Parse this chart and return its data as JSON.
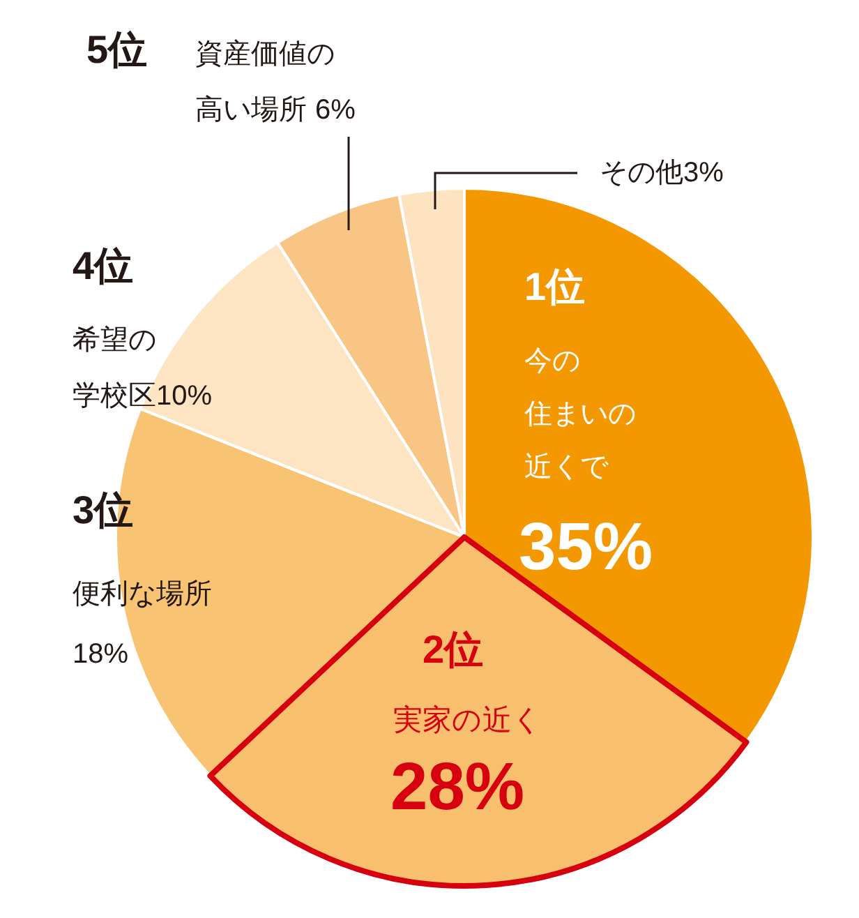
{
  "chart_data": {
    "type": "pie",
    "categories": [
      "今の住まいの近くで",
      "実家の近く",
      "便利な場所",
      "希望の学校区",
      "資産価値の高い場所",
      "その他"
    ],
    "values": [
      35,
      28,
      18,
      10,
      6,
      3
    ],
    "colors": [
      "#f39800",
      "#f8c06e",
      "#f8c373",
      "#fde4c2",
      "#f9c584",
      "#fde3c0"
    ],
    "value_labels": [
      "35%",
      "28%",
      "18%",
      "10%",
      "6%",
      "3%"
    ],
    "annotations": [
      "1位",
      "2位",
      "3位",
      "4位",
      "5位"
    ]
  }
}
